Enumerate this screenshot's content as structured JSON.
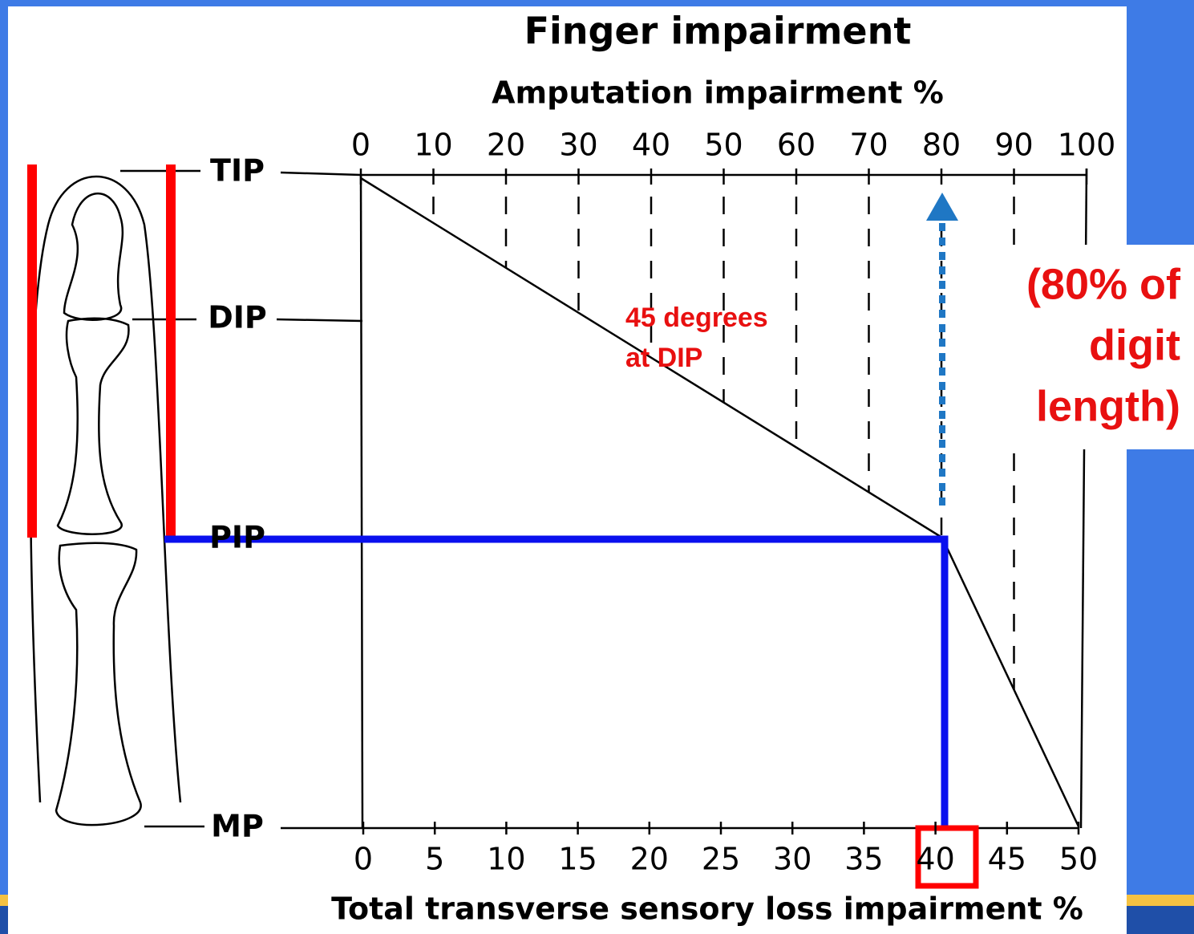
{
  "title": "Finger impairment",
  "top_axis": {
    "label": "Amputation impairment %",
    "ticks": [
      "0",
      "10",
      "20",
      "30",
      "40",
      "50",
      "60",
      "70",
      "80",
      "90",
      "100"
    ]
  },
  "bottom_axis": {
    "label": "Total transverse  sensory loss impairment %",
    "ticks": [
      "0",
      "5",
      "10",
      "15",
      "20",
      "25",
      "30",
      "35",
      "40",
      "45",
      "50"
    ]
  },
  "joints": [
    "TIP",
    "DIP",
    "PIP",
    "MP"
  ],
  "annotations": {
    "angle": [
      "45 degrees",
      "at DIP"
    ],
    "length": [
      "(80% of",
      "digit",
      "length)"
    ]
  }
}
